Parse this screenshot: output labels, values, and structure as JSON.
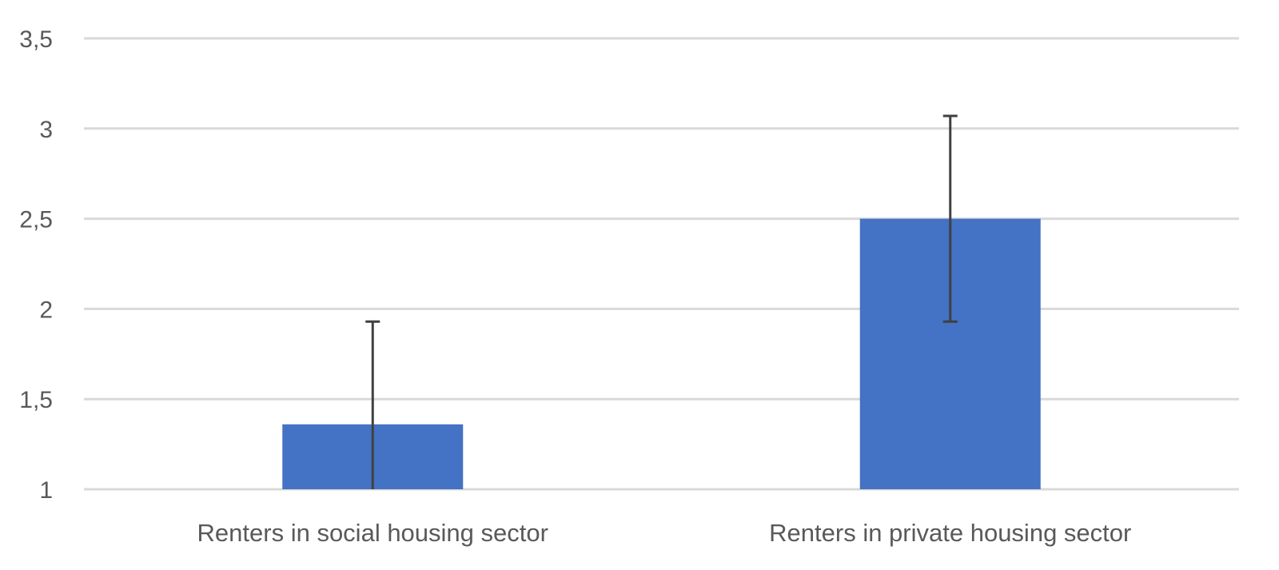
{
  "chart_data": {
    "type": "bar",
    "title": "",
    "xlabel": "",
    "ylabel": "",
    "categories": [
      "Renters in social housing sector",
      "Renters in private housing sector"
    ],
    "values": [
      1.36,
      2.5
    ],
    "error_bars": [
      {
        "low": 1.0,
        "high": 1.93
      },
      {
        "low": 1.93,
        "high": 3.07
      }
    ],
    "ylim": [
      1,
      3.5
    ],
    "yticks": [
      1,
      1.5,
      2,
      2.5,
      3,
      3.5
    ],
    "ytick_labels": [
      "1",
      "1,5",
      "2",
      "2,5",
      "3",
      "3,5"
    ],
    "grid": true,
    "legend": "none",
    "colors": {
      "bar": "#4472C4",
      "grid": "#D9D9D9",
      "error_bar": "#404040",
      "text": "#595959"
    }
  }
}
